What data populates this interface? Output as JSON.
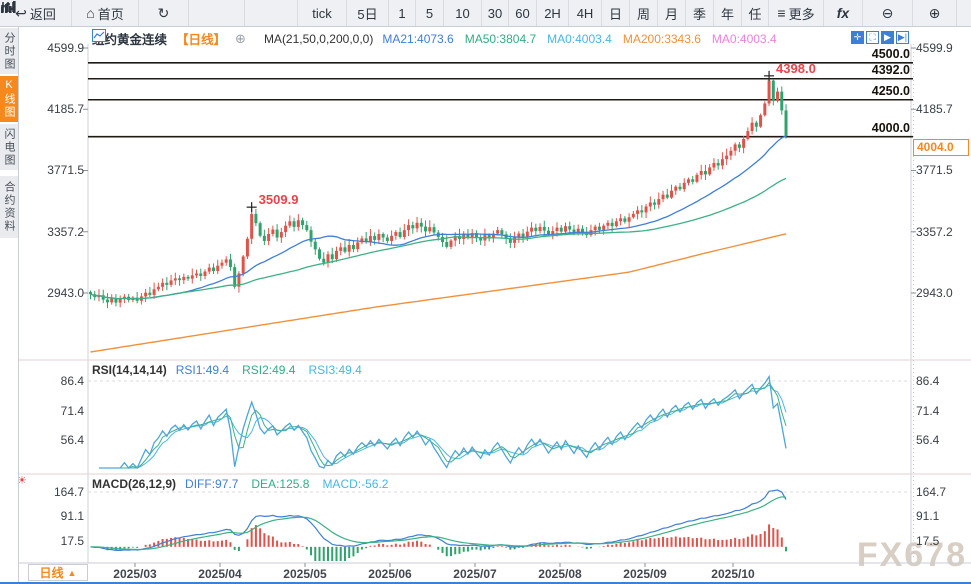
{
  "icons": {
    "back": "↩",
    "home": "⌂",
    "refresh": "↻",
    "more": "≡",
    "zoom_out": "⊖",
    "zoom_in": "⊕",
    "plus_circle": "⊕",
    "sun": "☀",
    "up_triangle": "▲"
  },
  "toolbar": {
    "items": [
      {
        "name": "back-button",
        "icon": "back",
        "label": "返回"
      },
      {
        "name": "home-button",
        "icon": "home",
        "label": "首页"
      },
      {
        "name": "refresh-button",
        "icon": "refresh",
        "label": ""
      },
      {
        "name": "chart-type-button",
        "svg_icon": "bar-chart-icon",
        "label": ""
      },
      {
        "name": "indicator-button",
        "svg_icon": "sliders-icon",
        "label": ""
      },
      {
        "name": "interval-tick-button",
        "label": "tick"
      },
      {
        "name": "interval-5d-button",
        "label": "5日"
      },
      {
        "name": "interval-1-button",
        "label": "1"
      },
      {
        "name": "interval-5-button",
        "label": "5"
      },
      {
        "name": "interval-10-button",
        "label": "10"
      },
      {
        "name": "interval-30-button",
        "label": "30"
      },
      {
        "name": "interval-60-button",
        "label": "60"
      },
      {
        "name": "interval-2h-button",
        "label": "2H"
      },
      {
        "name": "interval-4h-button",
        "label": "4H"
      },
      {
        "name": "interval-day-button",
        "label": "日"
      },
      {
        "name": "interval-week-button",
        "label": "周"
      },
      {
        "name": "interval-month-button",
        "label": "月"
      },
      {
        "name": "interval-quarter-button",
        "label": "季"
      },
      {
        "name": "interval-year-button",
        "label": "年"
      },
      {
        "name": "interval-custom-button",
        "label": "任"
      },
      {
        "name": "more-button",
        "icon": "more",
        "label": "更多"
      },
      {
        "name": "fx-button",
        "label": "fx"
      },
      {
        "name": "zoom-out-button",
        "icon": "zoom_out",
        "label": ""
      },
      {
        "name": "zoom-in-button",
        "icon": "zoom_in",
        "label": ""
      }
    ]
  },
  "sidebar": {
    "tabs": [
      {
        "name": "tab-time-chart",
        "label": "分时图",
        "active": false
      },
      {
        "name": "tab-kline-chart",
        "label": "K线图",
        "active": true
      },
      {
        "name": "tab-lightning-chart",
        "label": "闪电图",
        "active": false
      },
      {
        "name": "tab-contract-info",
        "label": "合约资料",
        "active": false
      }
    ]
  },
  "chart_header": {
    "symbol": "纽约黄金连续",
    "period_tag": "【日线】",
    "ma_label": "MA(21,50,0,200,0,0)",
    "ma_values": [
      {
        "label": "MA21:4073.6",
        "color": "#3f7fd6"
      },
      {
        "label": "MA50:3804.7",
        "color": "#35ab85"
      },
      {
        "label": "MA0:4003.4",
        "color": "#49b6e3"
      },
      {
        "label": "MA200:3343.6",
        "color": "#f0913c"
      },
      {
        "label": "MA0:4003.4",
        "color": "#e884d8"
      }
    ],
    "mini_controls": [
      "pan-icon",
      "frame-select-icon",
      "scroll-right-icon",
      "jump-latest-icon"
    ]
  },
  "rsi": {
    "header": "RSI(14,14,14)",
    "values": [
      {
        "label": "RSI1:49.4",
        "color": "#3f7fd6"
      },
      {
        "label": "RSI2:49.4",
        "color": "#35ab85"
      },
      {
        "label": "RSI3:49.4",
        "color": "#49b6e3"
      }
    ],
    "axis": [
      86.4,
      71.4,
      56.4
    ]
  },
  "macd": {
    "header": "MACD(26,12,9)",
    "values": [
      {
        "label": "DIFF:97.7",
        "color": "#3f7fd6"
      },
      {
        "label": "DEA:125.8",
        "color": "#35ab85"
      },
      {
        "label": "MACD:-56.2",
        "color": "#49b6e3"
      }
    ],
    "axis": [
      164.7,
      91.1,
      17.5
    ]
  },
  "bottom": {
    "period_label": "日线",
    "months": [
      "2025/03",
      "2025/04",
      "2025/05",
      "2025/06",
      "2025/07",
      "2025/08",
      "2025/09",
      "2025/10"
    ]
  },
  "watermark": "FX678",
  "colors": {
    "up": "#e0534a",
    "down": "#2fa36c",
    "ma21": "#3f7fd6",
    "ma50": "#3cb183",
    "ma200": "#f0913c",
    "accent": "#f5891d",
    "annotation": "#e8434a",
    "rsi1": "#4da6d9",
    "rsi2": "#3cb183",
    "rsi3": "#49b6e3",
    "diff": "#3f7fd6",
    "dea": "#3cb183",
    "price_line": "#1f1a14"
  },
  "chart_data": {
    "type": "candlestick",
    "symbol": "纽约黄金连续",
    "interval": "日线",
    "x_labels": [
      "2025/03",
      "2025/04",
      "2025/05",
      "2025/06",
      "2025/07",
      "2025/08",
      "2025/09",
      "2025/10"
    ],
    "y_axis_ticks": [
      4599.9,
      4185.7,
      3771.5,
      3357.2,
      2943.0
    ],
    "rsi_axis_ticks": [
      86.4,
      71.4,
      56.4
    ],
    "macd_axis_ticks": [
      164.7,
      91.1,
      17.5
    ],
    "price_lines": [
      {
        "value": 4500.0,
        "label": "4500.0"
      },
      {
        "value": 4392.0,
        "label": "4392.0"
      },
      {
        "value": 4250.0,
        "label": "4250.0"
      },
      {
        "value": 4000.0,
        "label": "4000.0"
      }
    ],
    "current_price": {
      "value": 4004.0,
      "label": "4004.0"
    },
    "annotations": [
      {
        "index": 38,
        "price": 3509.9,
        "label": "3509.9"
      },
      {
        "index": 160,
        "price": 4398.0,
        "label": "4398.0"
      }
    ],
    "indicator_readout": {
      "ma21": 4073.6,
      "ma50": 3804.7,
      "ma200": 3343.6,
      "ma0": 4003.4,
      "rsi1": 49.4,
      "rsi2": 49.4,
      "rsi3": 49.4,
      "diff": 97.7,
      "dea": 125.8,
      "macd": -56.2
    },
    "first_open": 2950,
    "ma200_waypoints": [
      [
        0,
        2544
      ],
      [
        67,
        2847
      ],
      [
        127,
        3084
      ],
      [
        144,
        3206
      ],
      [
        164,
        3343.6
      ]
    ],
    "closes": [
      2935,
      2915,
      2928,
      2898,
      2880,
      2905,
      2878,
      2902,
      2918,
      2895,
      2912,
      2890,
      2920,
      2945,
      2930,
      2968,
      2985,
      3012,
      2998,
      3028,
      3042,
      3030,
      3052,
      3040,
      3062,
      3075,
      3058,
      3088,
      3115,
      3092,
      3128,
      3148,
      3170,
      3118,
      2985,
      3075,
      3190,
      3310,
      3478,
      3415,
      3330,
      3295,
      3342,
      3372,
      3318,
      3355,
      3398,
      3428,
      3390,
      3435,
      3402,
      3368,
      3290,
      3238,
      3175,
      3148,
      3205,
      3172,
      3228,
      3252,
      3222,
      3268,
      3240,
      3285,
      3312,
      3290,
      3328,
      3302,
      3342,
      3318,
      3295,
      3330,
      3355,
      3322,
      3368,
      3402,
      3380,
      3418,
      3392,
      3360,
      3388,
      3352,
      3322,
      3288,
      3255,
      3298,
      3330,
      3308,
      3342,
      3315,
      3348,
      3322,
      3298,
      3335,
      3312,
      3345,
      3368,
      3340,
      3310,
      3282,
      3318,
      3345,
      3322,
      3358,
      3385,
      3362,
      3390,
      3365,
      3338,
      3362,
      3385,
      3358,
      3395,
      3372,
      3348,
      3378,
      3355,
      3335,
      3368,
      3392,
      3370,
      3398,
      3418,
      3395,
      3428,
      3448,
      3425,
      3455,
      3478,
      3502,
      3488,
      3528,
      3555,
      3540,
      3578,
      3608,
      3588,
      3635,
      3662,
      3645,
      3688,
      3712,
      3695,
      3742,
      3768,
      3745,
      3792,
      3822,
      3805,
      3848,
      3872,
      3905,
      3948,
      3925,
      3985,
      4038,
      4095,
      4068,
      4145,
      4225,
      4380,
      4242,
      4305,
      4178,
      4004
    ]
  }
}
